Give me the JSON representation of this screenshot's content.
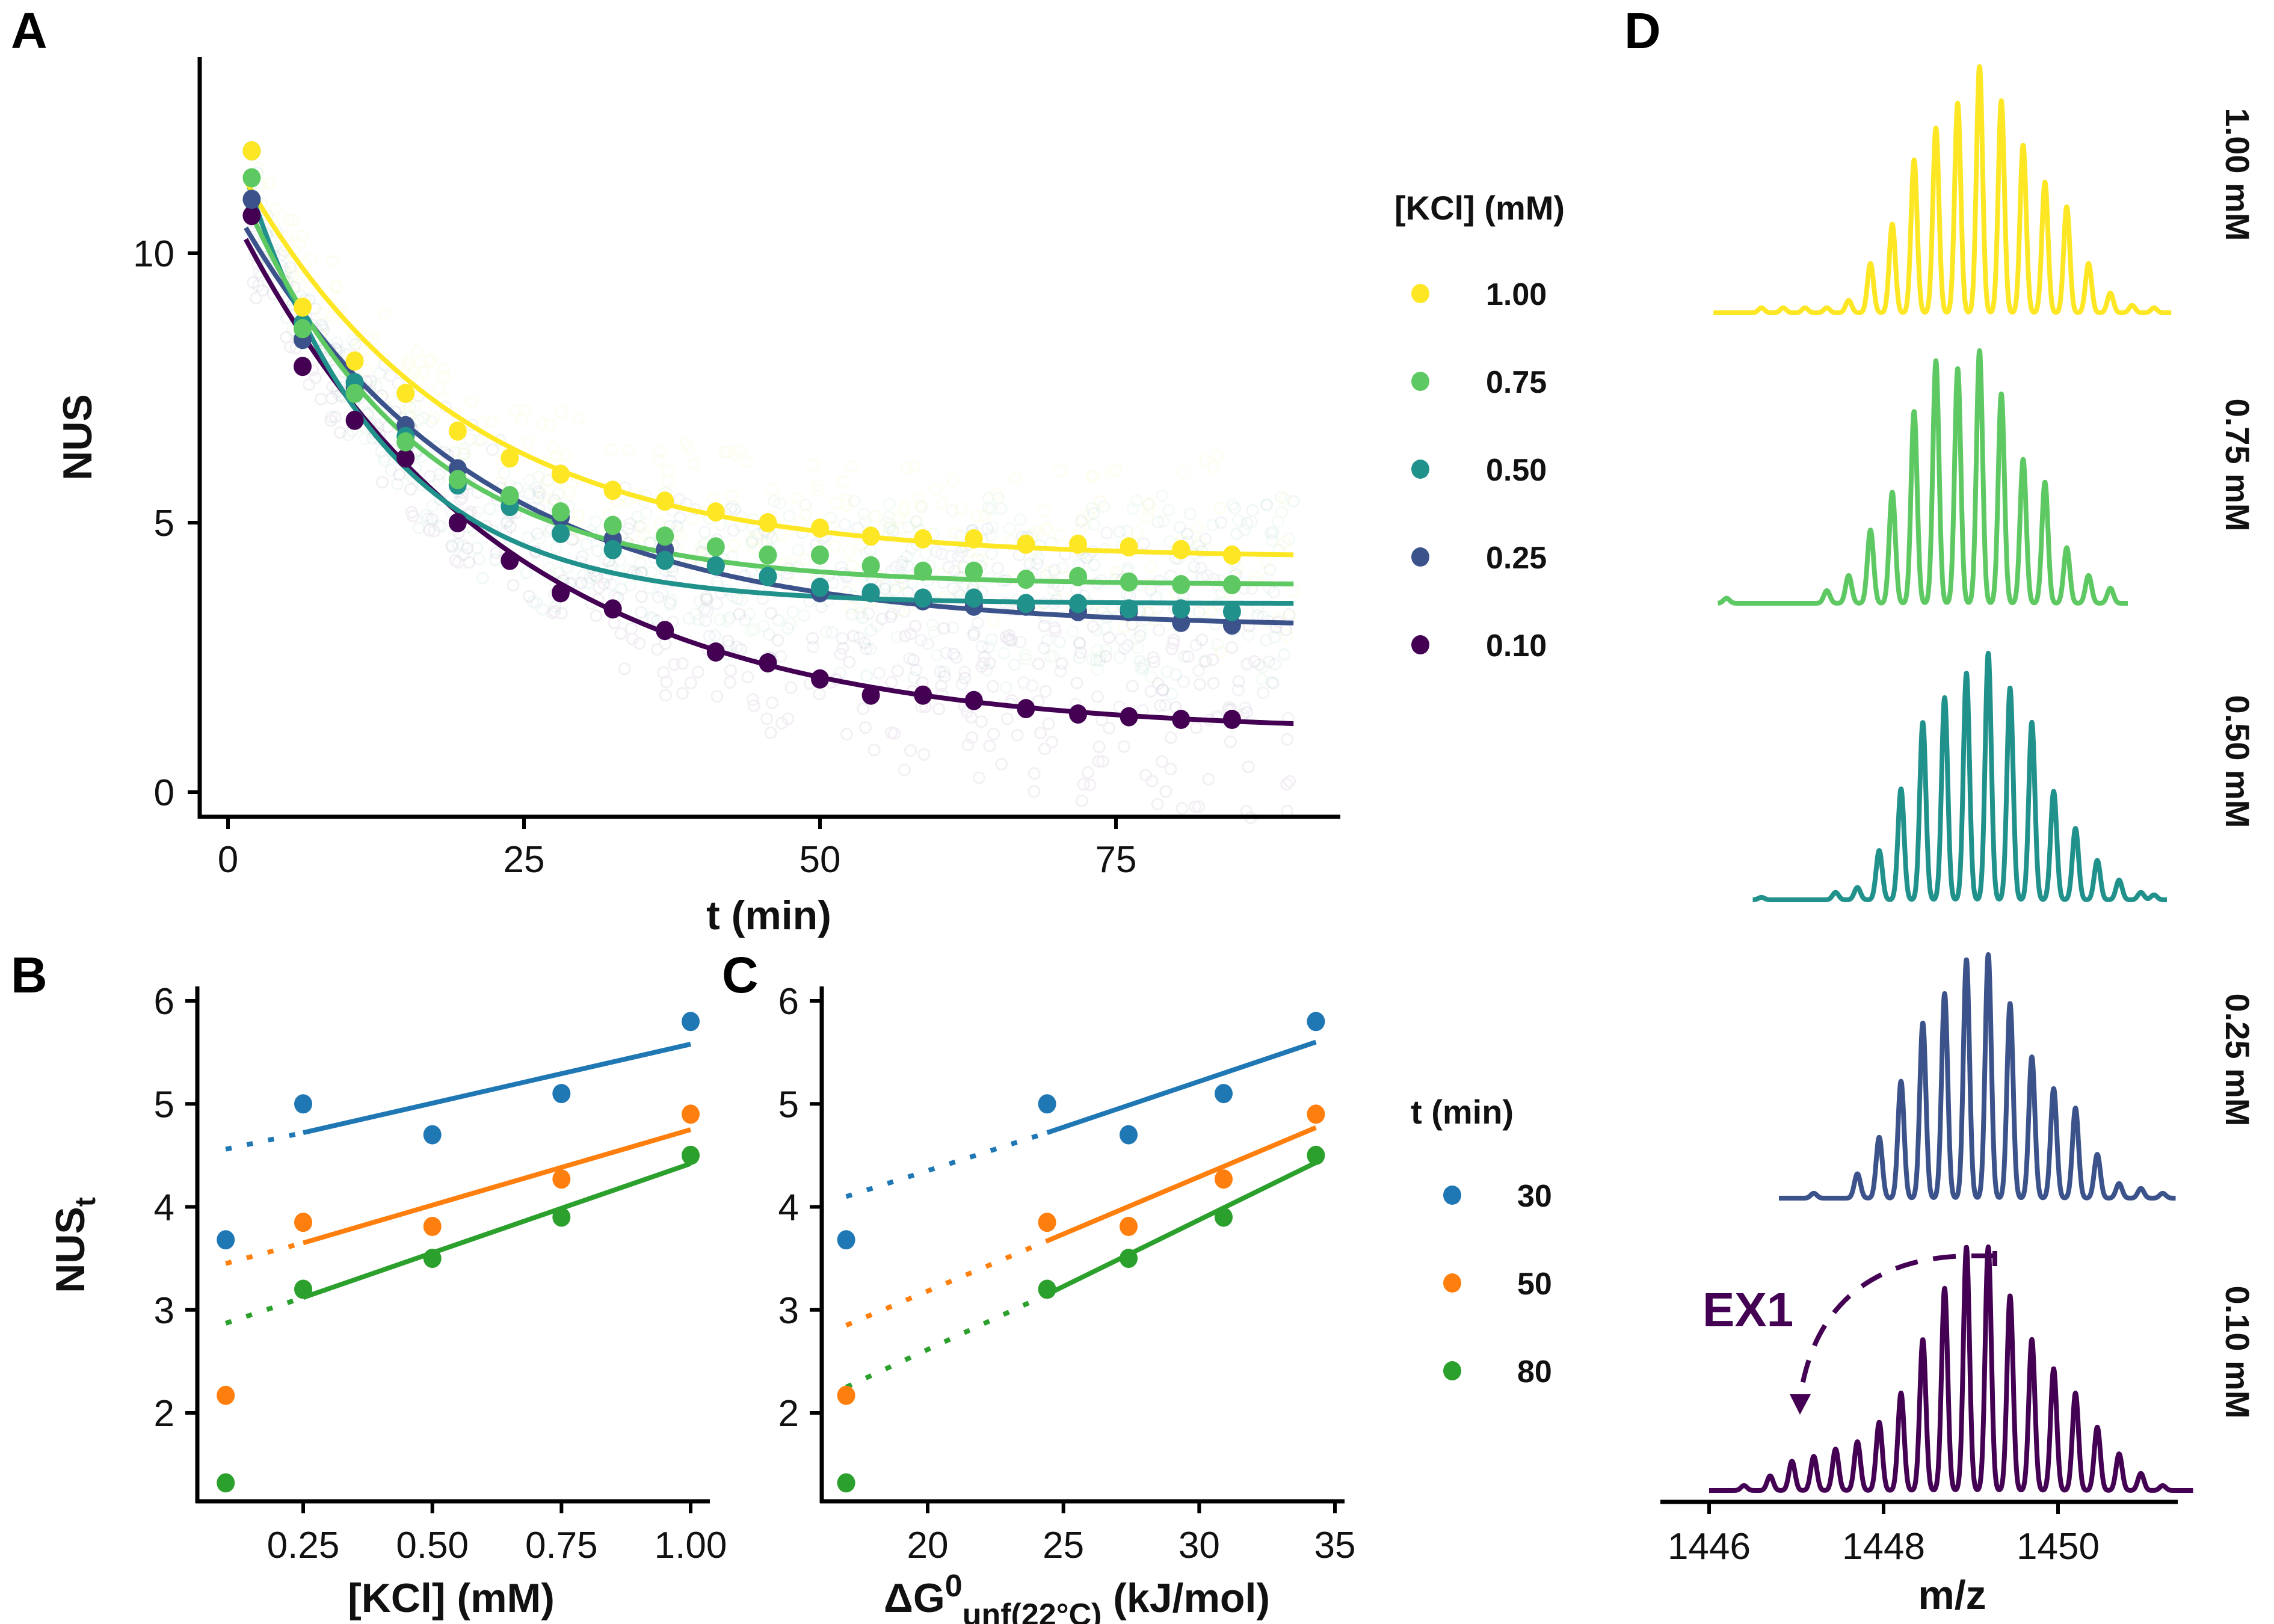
{
  "chart_data": [
    {
      "panel": "A",
      "type": "scatter",
      "title": "",
      "xlabel": "t (min)",
      "ylabel": "NUS",
      "xlim": [
        -4,
        92
      ],
      "ylim": [
        -0.6,
        13.5
      ],
      "x_ticks": [
        0,
        25,
        50,
        75
      ],
      "x_tick_labels": [
        "0",
        "25",
        "50",
        "75"
      ],
      "y_ticks": [
        0,
        5,
        10
      ],
      "y_tick_labels": [
        "0",
        "5",
        "10"
      ],
      "grid": false,
      "legend": {
        "title": "[KCl] (mM)",
        "position": "right",
        "entries": [
          "1.00",
          "0.75",
          "0.50",
          "0.25",
          "0.10"
        ]
      },
      "x": [
        2,
        6.3,
        10.7,
        15,
        19.4,
        23.8,
        28.1,
        32.5,
        36.9,
        41.2,
        45.6,
        50,
        54.3,
        58.7,
        63,
        67.4,
        71.8,
        76.1,
        80.5,
        84.8
      ],
      "series": [
        {
          "name": "1.00",
          "color": "#FDE725",
          "values": [
            11.9,
            9.0,
            8.0,
            7.4,
            6.7,
            6.2,
            5.9,
            5.6,
            5.4,
            5.2,
            5.0,
            4.9,
            4.75,
            4.7,
            4.7,
            4.6,
            4.6,
            4.55,
            4.5,
            4.4
          ],
          "fit": {
            "a": 7.6,
            "k": 0.055,
            "c": 4.35
          }
        },
        {
          "name": "0.75",
          "color": "#5EC962",
          "values": [
            11.4,
            8.6,
            7.4,
            6.5,
            5.8,
            5.5,
            5.2,
            4.95,
            4.75,
            4.55,
            4.4,
            4.4,
            4.2,
            4.1,
            4.1,
            3.95,
            4.0,
            3.9,
            3.85,
            3.85
          ],
          "fit": {
            "a": 7.9,
            "k": 0.07,
            "c": 3.85
          }
        },
        {
          "name": "0.50",
          "color": "#21918C",
          "values": [
            11.9,
            8.7,
            7.6,
            6.6,
            5.7,
            5.3,
            4.8,
            4.5,
            4.3,
            4.2,
            4.0,
            3.8,
            3.7,
            3.6,
            3.6,
            3.5,
            3.5,
            3.4,
            3.4,
            3.35
          ],
          "fit": {
            "a": 9.0,
            "k": 0.085,
            "c": 3.5
          }
        },
        {
          "name": "0.25",
          "color": "#3B528B",
          "values": [
            11.0,
            8.4,
            7.5,
            6.8,
            6.0,
            5.5,
            5.1,
            4.7,
            4.5,
            4.2,
            4.0,
            3.7,
            3.7,
            3.55,
            3.45,
            3.45,
            3.35,
            3.35,
            3.15,
            3.1
          ],
          "fit": {
            "a": 8.0,
            "k": 0.05,
            "c": 3.05
          }
        },
        {
          "name": "0.10",
          "color": "#440154",
          "values": [
            10.7,
            7.9,
            6.9,
            6.2,
            5.0,
            4.3,
            3.7,
            3.4,
            3.0,
            2.6,
            2.4,
            2.1,
            1.8,
            1.8,
            1.7,
            1.55,
            1.45,
            1.4,
            1.35,
            1.35
          ],
          "fit": {
            "a": 9.8,
            "k": 0.045,
            "c": 1.1
          }
        }
      ]
    },
    {
      "panel": "B",
      "type": "scatter",
      "xlabel": "[KCl] (mM)",
      "ylabel": "NUSt",
      "xlim": [
        0.06,
        1.04
      ],
      "ylim": [
        1.15,
        6.0
      ],
      "x_ticks": [
        0.25,
        0.5,
        0.75,
        1.0
      ],
      "x_tick_labels": [
        "0.25",
        "0.50",
        "0.75",
        "1.00"
      ],
      "y_ticks": [
        2,
        3,
        4,
        5,
        6
      ],
      "y_tick_labels": [
        "2",
        "3",
        "4",
        "5",
        "6"
      ],
      "grid": false,
      "legend": {
        "title": "t (min)",
        "position": "right",
        "entries": [
          "30",
          "50",
          "80"
        ]
      },
      "x": [
        0.1,
        0.25,
        0.5,
        0.75,
        1.0
      ],
      "series": [
        {
          "name": "30",
          "color": "#1F77B4",
          "values": [
            3.68,
            5.0,
            4.7,
            5.1,
            5.8
          ],
          "fit_line": {
            "solid": [
              [
                0.25,
                4.72
              ],
              [
                1.0,
                5.58
              ]
            ],
            "dotted": [
              [
                0.1,
                4.56
              ],
              [
                0.25,
                4.72
              ]
            ]
          }
        },
        {
          "name": "50",
          "color": "#FF7F0E",
          "values": [
            2.17,
            3.85,
            3.81,
            4.27,
            4.9
          ],
          "fit_line": {
            "solid": [
              [
                0.25,
                3.65
              ],
              [
                1.0,
                4.75
              ]
            ],
            "dotted": [
              [
                0.1,
                3.45
              ],
              [
                0.25,
                3.65
              ]
            ]
          }
        },
        {
          "name": "80",
          "color": "#2CA02C",
          "values": [
            1.32,
            3.2,
            3.5,
            3.9,
            4.5
          ],
          "fit_line": {
            "solid": [
              [
                0.25,
                3.12
              ],
              [
                1.0,
                4.42
              ]
            ],
            "dotted": [
              [
                0.1,
                2.87
              ],
              [
                0.25,
                3.12
              ]
            ]
          }
        }
      ]
    },
    {
      "panel": "C",
      "type": "scatter",
      "xlabel": "ΔG0unf(22°C) (kJ/mol)",
      "xlabel_parts": {
        "main": "ΔG",
        "sup": "0",
        "sub": "unf(22°C)",
        "unit": " (kJ/mol)"
      },
      "ylabel": "",
      "xlim": [
        16.2,
        35.1
      ],
      "ylim": [
        1.15,
        6.0
      ],
      "x_ticks": [
        20,
        25,
        30,
        35
      ],
      "x_tick_labels": [
        "20",
        "25",
        "30",
        "35"
      ],
      "y_ticks": [
        2,
        3,
        4,
        5,
        6
      ],
      "y_tick_labels": [
        "2",
        "3",
        "4",
        "5",
        "6"
      ],
      "grid": false,
      "x": [
        17.0,
        24.4,
        27.4,
        30.9,
        34.3
      ],
      "series": [
        {
          "name": "30",
          "color": "#1F77B4",
          "values": [
            3.68,
            5.0,
            4.7,
            5.1,
            5.8
          ],
          "fit_line": {
            "solid": [
              [
                24.4,
                4.72
              ],
              [
                34.3,
                5.6
              ]
            ],
            "dotted": [
              [
                17.0,
                4.1
              ],
              [
                24.4,
                4.72
              ]
            ]
          }
        },
        {
          "name": "50",
          "color": "#FF7F0E",
          "values": [
            2.17,
            3.85,
            3.81,
            4.27,
            4.9
          ],
          "fit_line": {
            "solid": [
              [
                24.4,
                3.67
              ],
              [
                34.3,
                4.77
              ]
            ],
            "dotted": [
              [
                17.0,
                2.85
              ],
              [
                24.4,
                3.67
              ]
            ]
          }
        },
        {
          "name": "80",
          "color": "#2CA02C",
          "values": [
            1.32,
            3.2,
            3.5,
            3.9,
            4.5
          ],
          "fit_line": {
            "solid": [
              [
                24.4,
                3.15
              ],
              [
                34.3,
                4.43
              ]
            ],
            "dotted": [
              [
                17.0,
                2.25
              ],
              [
                24.4,
                3.15
              ]
            ]
          }
        }
      ]
    },
    {
      "panel": "D",
      "type": "line",
      "xlabel": "m/z",
      "ylabel": "",
      "xlim": [
        1445.97,
        1451.65
      ],
      "x_ticks": [
        1446,
        1448,
        1450
      ],
      "x_tick_labels": [
        "1446",
        "1448",
        "1450"
      ],
      "grid": false,
      "peak_spacing": 0.25,
      "series": [
        {
          "name": "1.00 mM",
          "color": "#FDE725",
          "x_start": 1446.05,
          "x_end": 1451.3,
          "peaks_mz": [
            1446.6,
            1446.85,
            1447.1,
            1447.35,
            1447.6,
            1447.85,
            1448.1,
            1448.35,
            1448.6,
            1448.85,
            1449.1,
            1449.35,
            1449.6,
            1449.85,
            1450.1,
            1450.35,
            1450.6,
            1450.85,
            1451.1
          ],
          "peaks_rel": [
            0.02,
            0.02,
            0.02,
            0.02,
            0.05,
            0.2,
            0.36,
            0.62,
            0.75,
            0.85,
            1.0,
            0.86,
            0.68,
            0.53,
            0.43,
            0.2,
            0.08,
            0.03,
            0.02
          ]
        },
        {
          "name": "0.75 mM",
          "color": "#5EC962",
          "x_start": 1446.1,
          "x_end": 1450.8,
          "peaks_mz": [
            1446.2,
            1447.35,
            1447.6,
            1447.85,
            1448.1,
            1448.35,
            1448.6,
            1448.85,
            1449.1,
            1449.35,
            1449.6,
            1449.85,
            1450.1,
            1450.35,
            1450.6
          ],
          "peaks_rel": [
            0.02,
            0.05,
            0.11,
            0.29,
            0.44,
            0.76,
            0.96,
            0.93,
            1.0,
            0.83,
            0.57,
            0.48,
            0.22,
            0.11,
            0.06
          ]
        },
        {
          "name": "0.50 mM",
          "color": "#21918C",
          "x_start": 1446.5,
          "x_end": 1451.25,
          "peaks_mz": [
            1446.6,
            1447.45,
            1447.7,
            1447.95,
            1448.2,
            1448.45,
            1448.7,
            1448.95,
            1449.2,
            1449.45,
            1449.7,
            1449.95,
            1450.2,
            1450.45,
            1450.7,
            1450.95,
            1451.1
          ],
          "peaks_rel": [
            0.01,
            0.03,
            0.05,
            0.2,
            0.45,
            0.72,
            0.82,
            0.92,
            1.0,
            0.86,
            0.72,
            0.44,
            0.29,
            0.16,
            0.08,
            0.03,
            0.02
          ]
        },
        {
          "name": "0.25 mM",
          "color": "#3B528B",
          "x_start": 1446.8,
          "x_end": 1451.35,
          "peaks_mz": [
            1447.2,
            1447.7,
            1447.95,
            1448.2,
            1448.45,
            1448.7,
            1448.95,
            1449.2,
            1449.45,
            1449.7,
            1449.95,
            1450.2,
            1450.45,
            1450.7,
            1450.95,
            1451.2
          ],
          "peaks_rel": [
            0.02,
            0.1,
            0.25,
            0.48,
            0.72,
            0.84,
            0.98,
            1.0,
            0.8,
            0.58,
            0.45,
            0.37,
            0.18,
            0.06,
            0.04,
            0.02
          ]
        },
        {
          "name": "0.10 mM",
          "color": "#440154",
          "x_start": 1446.0,
          "x_end": 1451.55,
          "peaks_mz": [
            1446.4,
            1446.7,
            1446.95,
            1447.2,
            1447.45,
            1447.7,
            1447.95,
            1448.2,
            1448.45,
            1448.7,
            1448.95,
            1449.2,
            1449.45,
            1449.7,
            1449.95,
            1450.2,
            1450.45,
            1450.7,
            1450.95,
            1451.2
          ],
          "peaks_rel": [
            0.02,
            0.06,
            0.12,
            0.14,
            0.17,
            0.2,
            0.28,
            0.4,
            0.62,
            0.83,
            1.0,
            1.0,
            0.8,
            0.62,
            0.5,
            0.4,
            0.26,
            0.15,
            0.07,
            0.02
          ]
        }
      ],
      "annotation": {
        "text": "EX1",
        "color": "#440154",
        "arrow": "dashed curved arrow from top of 0.10 mM envelope to low m/z shoulder near 1447.2"
      }
    }
  ],
  "panels": {
    "a": {
      "letter": "A",
      "xlabel": "t (min)",
      "ylabel": "NUS"
    },
    "b": {
      "letter": "B",
      "xlabel": "[KCl] (mM)",
      "ylabel_main": "NUS",
      "ylabel_sub": "t"
    },
    "c": {
      "letter": "C",
      "xlabel_main": "ΔG",
      "xlabel_sup": "0",
      "xlabel_sub": "unf(22°C)",
      "xlabel_unit": " (kJ/mol)"
    },
    "d": {
      "letter": "D",
      "xlabel": "m/z",
      "annotation": "EX1"
    }
  },
  "legend_kcl": {
    "title": "[KCl] (mM)",
    "items": [
      {
        "label": "1.00",
        "color": "#FDE725"
      },
      {
        "label": "0.75",
        "color": "#5EC962"
      },
      {
        "label": "0.50",
        "color": "#21918C"
      },
      {
        "label": "0.25",
        "color": "#3B528B"
      },
      {
        "label": "0.10",
        "color": "#440154"
      }
    ]
  },
  "legend_time": {
    "title": "t (min)",
    "items": [
      {
        "label": "30",
        "color": "#1F77B4"
      },
      {
        "label": "50",
        "color": "#FF7F0E"
      },
      {
        "label": "80",
        "color": "#2CA02C"
      }
    ]
  }
}
